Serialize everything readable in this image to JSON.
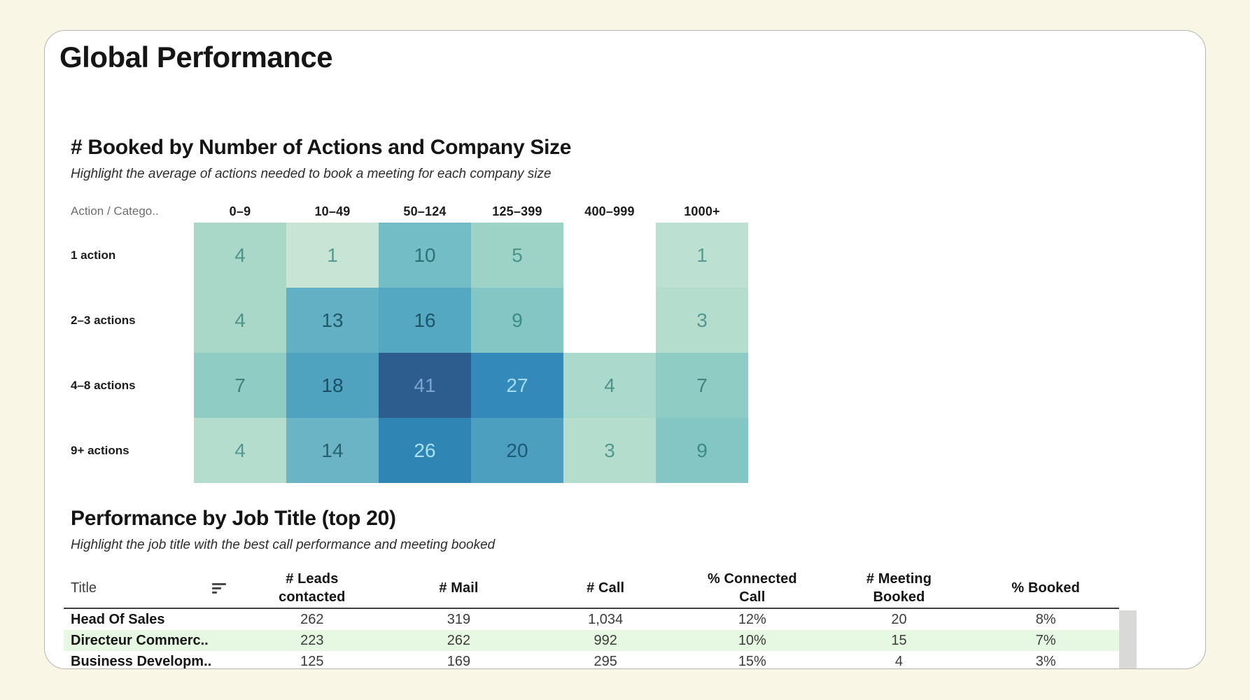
{
  "page": {
    "title": "Global Performance"
  },
  "chart_data": [
    {
      "type": "heatmap",
      "title": "# Booked by Number of Actions and Company Size",
      "subtitle": "Highlight the average of actions needed to book a meeting for each company size",
      "corner_label": "Action / Catego..",
      "columns": [
        "0–9",
        "10–49",
        "50–124",
        "125–399",
        "400–999",
        "1000+"
      ],
      "rows": [
        "1 action",
        "2–3 actions",
        "4–8 actions",
        "9+ actions"
      ],
      "values": [
        [
          4,
          1,
          10,
          5,
          null,
          1
        ],
        [
          4,
          13,
          16,
          9,
          null,
          3
        ],
        [
          7,
          18,
          41,
          27,
          4,
          7
        ],
        [
          4,
          14,
          26,
          20,
          3,
          9
        ]
      ],
      "cell_colors": [
        [
          "#a9d8c9",
          "#c6e5d5",
          "#73bdc7",
          "#9dd2c6",
          null,
          "#bce1d2"
        ],
        [
          "#a9d8c9",
          "#62b0c3",
          "#55a8c1",
          "#84c6c3",
          null,
          "#b4ddcd"
        ],
        [
          "#8fccc4",
          "#4fa3bf",
          "#2d5c8e",
          "#3289ba",
          "#abd9cb",
          "#8fccc4"
        ],
        [
          "#b4ddce",
          "#6ab4c5",
          "#2f86b5",
          "#4d9fbf",
          "#b4ddcd",
          "#84c6c3"
        ]
      ],
      "value_colors": [
        [
          "#4f948c",
          "#5c9b91",
          "#2e7177",
          "#4f948c",
          null,
          "#5c9b91"
        ],
        [
          "#4f948c",
          "#1f5a68",
          "#1d5666",
          "#3d8a87",
          null,
          "#549890"
        ],
        [
          "#3f837d",
          "#1b4f63",
          "#7ba3cf",
          "#a3dcf2",
          "#4f948c",
          "#3f837d"
        ],
        [
          "#549890",
          "#27606e",
          "#a9e0f3",
          "#1d5a74",
          "#549890",
          "#3d8a87"
        ]
      ],
      "legend_position": "none",
      "color_scale": {
        "low": "#c6e5d5",
        "high": "#2d5c8e"
      }
    },
    {
      "type": "table",
      "title": "Performance by Job Title (top 20)",
      "subtitle": "Highlight the job title with the best call performance and meeting booked",
      "columns": [
        {
          "lines": [
            "Title"
          ]
        },
        {
          "lines": [
            "# Leads",
            "contacted"
          ]
        },
        {
          "lines": [
            "# Mail"
          ]
        },
        {
          "lines": [
            "# Call"
          ]
        },
        {
          "lines": [
            "% Connected",
            "Call"
          ]
        },
        {
          "lines": [
            "# Meeting",
            "Booked"
          ]
        },
        {
          "lines": [
            "% Booked"
          ]
        }
      ],
      "rows": [
        {
          "title": "Head Of Sales",
          "values": [
            "262",
            "319",
            "1,034",
            "12%",
            "20",
            "8%"
          ],
          "highlighted": false
        },
        {
          "title": "Directeur Commerc..",
          "values": [
            "223",
            "262",
            "992",
            "10%",
            "15",
            "7%"
          ],
          "highlighted": true
        },
        {
          "title": "Business Developm..",
          "values": [
            "125",
            "169",
            "295",
            "15%",
            "4",
            "3%"
          ],
          "highlighted": false
        }
      ],
      "highlight_color": "#e6f8e2"
    }
  ]
}
